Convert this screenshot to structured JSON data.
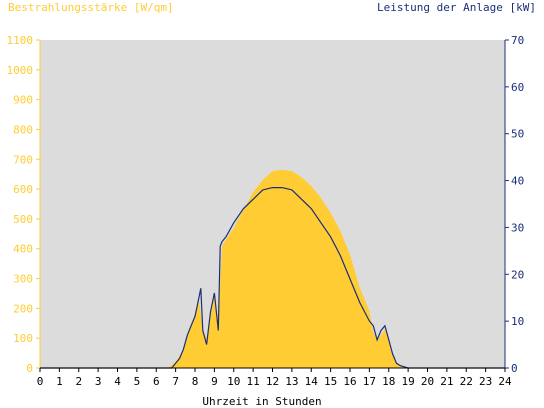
{
  "chart_data": {
    "type": "area",
    "left_axis_title": "Bestrahlungsstärke [W/qm]",
    "right_axis_title": "Leistung der Anlage [kW]",
    "xlabel": "Uhrzeit in Stunden",
    "xlim": [
      0,
      24
    ],
    "x_ticks": [
      "0",
      "1",
      "2",
      "3",
      "4",
      "5",
      "6",
      "7",
      "8",
      "9",
      "10",
      "11",
      "12",
      "13",
      "14",
      "15",
      "16",
      "17",
      "18",
      "19",
      "20",
      "21",
      "22",
      "23",
      "24"
    ],
    "y_left_lim": [
      0,
      1100
    ],
    "y_left_ticks": [
      "0",
      "100",
      "200",
      "300",
      "400",
      "500",
      "600",
      "700",
      "800",
      "900",
      "1000",
      "1100"
    ],
    "y_right_lim": [
      0,
      70
    ],
    "y_right_ticks": [
      "0",
      "10",
      "20",
      "30",
      "40",
      "50",
      "60",
      "70"
    ],
    "grid": false,
    "colors": {
      "plot_background": "#dcdcdc",
      "irradiance_fill": "#ffcc33",
      "power_line": "#1a2f7a",
      "left_axis_text": "#ffcc33",
      "right_axis_text": "#1a2f7a"
    },
    "series": [
      {
        "axis": "left",
        "style": "filled-area",
        "x": [
          0,
          6.6,
          7.0,
          7.2,
          7.4,
          7.6,
          7.8,
          8.0,
          8.2,
          8.4,
          8.6,
          8.8,
          9.0,
          9.2,
          9.4,
          9.6,
          10.0,
          10.5,
          11.0,
          11.5,
          12.0,
          12.5,
          13.0,
          13.5,
          14.0,
          14.5,
          15.0,
          15.5,
          16.0,
          16.5,
          17.0,
          17.2,
          17.4,
          17.6,
          17.8,
          18.0,
          18.2,
          18.4,
          18.6,
          18.8,
          19.0,
          24
        ],
        "y": [
          0,
          0,
          20,
          40,
          60,
          110,
          150,
          180,
          230,
          130,
          100,
          190,
          260,
          150,
          410,
          430,
          470,
          530,
          590,
          630,
          660,
          665,
          660,
          640,
          610,
          570,
          520,
          460,
          380,
          270,
          190,
          120,
          95,
          110,
          130,
          90,
          45,
          20,
          8,
          2,
          0,
          0
        ]
      },
      {
        "axis": "right",
        "style": "line",
        "x": [
          0,
          6.8,
          7.0,
          7.2,
          7.4,
          7.6,
          7.8,
          8.0,
          8.2,
          8.3,
          8.4,
          8.6,
          8.8,
          9.0,
          9.2,
          9.3,
          9.4,
          9.6,
          10.0,
          10.5,
          11.0,
          11.5,
          12.0,
          12.5,
          13.0,
          13.5,
          14.0,
          14.5,
          15.0,
          15.5,
          16.0,
          16.5,
          17.0,
          17.2,
          17.4,
          17.6,
          17.8,
          18.0,
          18.2,
          18.4,
          18.6,
          19.0,
          24
        ],
        "y": [
          0,
          0,
          1,
          2,
          4,
          7,
          9,
          11,
          15,
          17,
          8,
          5,
          12,
          16,
          8,
          26,
          27,
          28,
          31,
          34,
          36,
          38,
          38.5,
          38.5,
          38,
          36,
          34,
          31,
          28,
          24,
          19,
          14,
          10,
          9,
          6,
          8,
          9,
          6,
          3,
          1,
          0.5,
          0,
          0
        ]
      }
    ]
  }
}
